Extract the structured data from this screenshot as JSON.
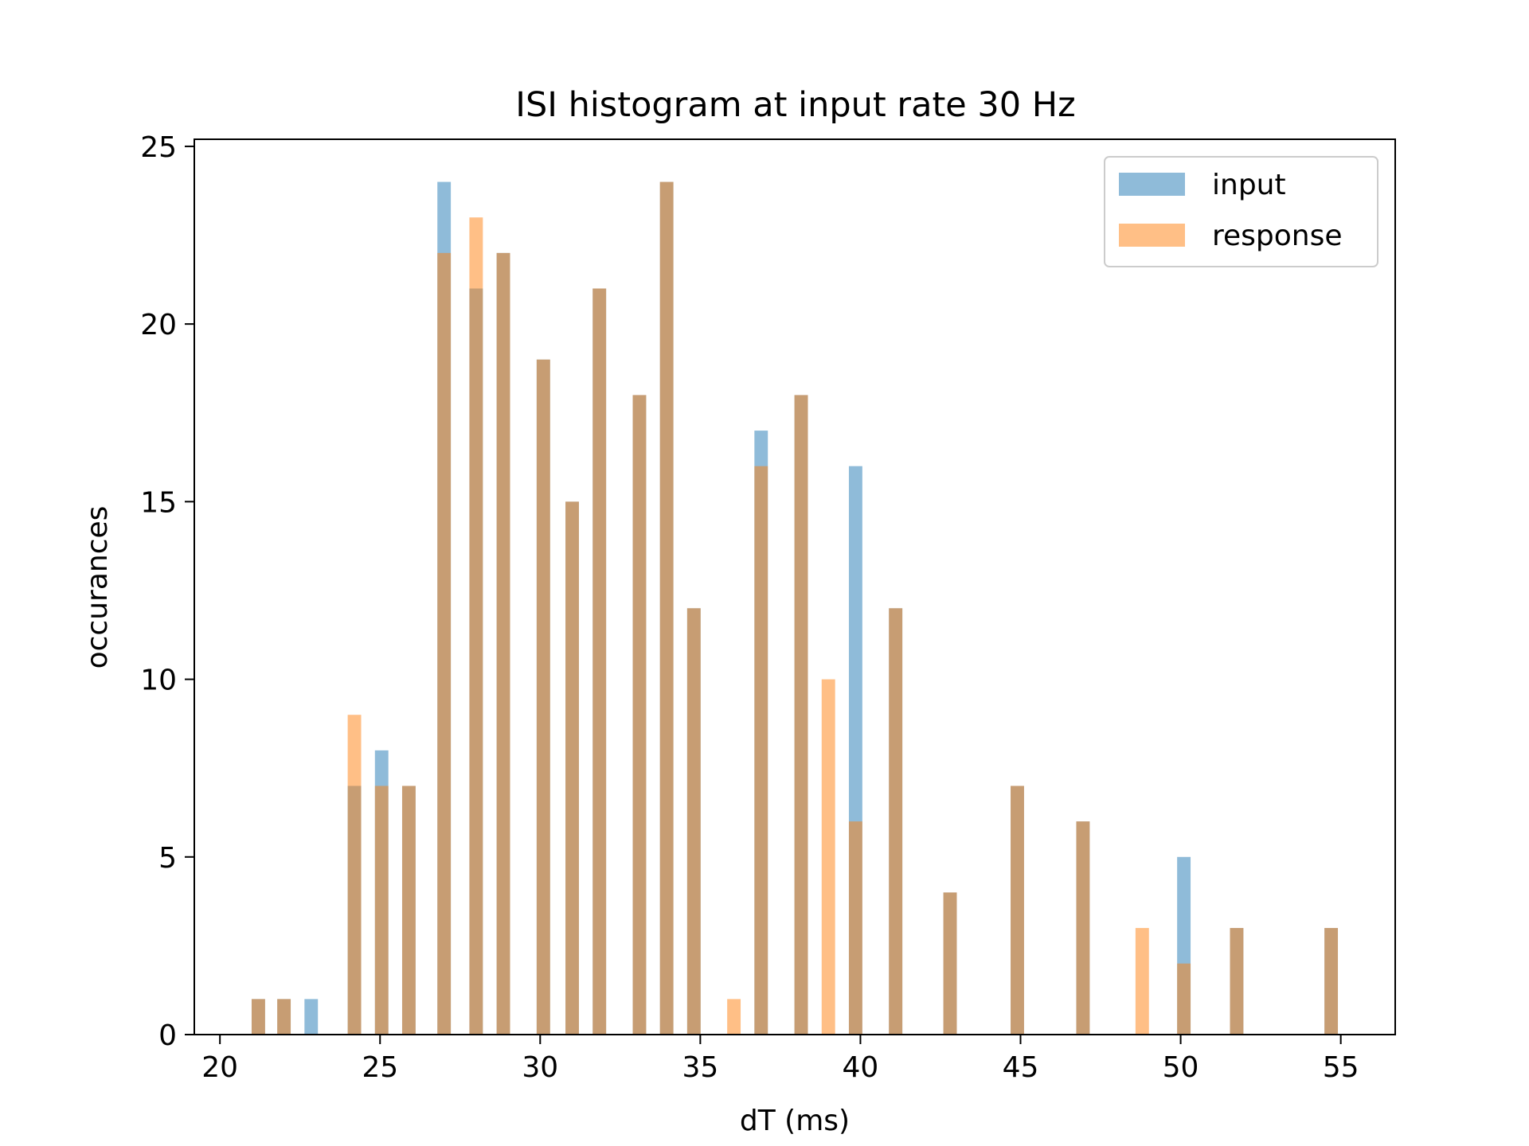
{
  "chart_data": {
    "type": "bar",
    "title": "ISI histogram at input rate 30 Hz",
    "xlabel": "dT (ms)",
    "ylabel": "occurances",
    "xlim": [
      19.2,
      56.7
    ],
    "ylim": [
      0,
      25.2
    ],
    "xticks": [
      20,
      25,
      30,
      35,
      40,
      45,
      50,
      55
    ],
    "yticks": [
      0,
      5,
      10,
      15,
      20,
      25
    ],
    "bin_width": 0.42,
    "legend": {
      "position": "top-right"
    },
    "grid": false,
    "series": [
      {
        "name": "input",
        "color": "#1f77b4",
        "opacity": 0.5,
        "points": [
          {
            "x": 21.2,
            "y": 1
          },
          {
            "x": 22.0,
            "y": 1
          },
          {
            "x": 22.85,
            "y": 1
          },
          {
            "x": 24.2,
            "y": 7
          },
          {
            "x": 25.05,
            "y": 8
          },
          {
            "x": 25.9,
            "y": 7
          },
          {
            "x": 27.0,
            "y": 24
          },
          {
            "x": 28.0,
            "y": 21
          },
          {
            "x": 28.85,
            "y": 22
          },
          {
            "x": 30.1,
            "y": 19
          },
          {
            "x": 31.0,
            "y": 15
          },
          {
            "x": 31.85,
            "y": 21
          },
          {
            "x": 33.1,
            "y": 18
          },
          {
            "x": 33.95,
            "y": 24
          },
          {
            "x": 34.8,
            "y": 12
          },
          {
            "x": 36.9,
            "y": 17
          },
          {
            "x": 38.15,
            "y": 18
          },
          {
            "x": 39.85,
            "y": 16
          },
          {
            "x": 41.1,
            "y": 12
          },
          {
            "x": 42.8,
            "y": 4
          },
          {
            "x": 44.9,
            "y": 7
          },
          {
            "x": 46.95,
            "y": 6
          },
          {
            "x": 50.1,
            "y": 5
          },
          {
            "x": 51.75,
            "y": 3
          },
          {
            "x": 54.7,
            "y": 3
          }
        ]
      },
      {
        "name": "response",
        "color": "#ff7f0e",
        "opacity": 0.5,
        "points": [
          {
            "x": 21.2,
            "y": 1
          },
          {
            "x": 22.0,
            "y": 1
          },
          {
            "x": 24.2,
            "y": 9
          },
          {
            "x": 25.05,
            "y": 7
          },
          {
            "x": 25.9,
            "y": 7
          },
          {
            "x": 27.0,
            "y": 22
          },
          {
            "x": 28.0,
            "y": 23
          },
          {
            "x": 28.85,
            "y": 22
          },
          {
            "x": 30.1,
            "y": 19
          },
          {
            "x": 31.0,
            "y": 15
          },
          {
            "x": 31.85,
            "y": 21
          },
          {
            "x": 33.1,
            "y": 18
          },
          {
            "x": 33.95,
            "y": 24
          },
          {
            "x": 34.8,
            "y": 12
          },
          {
            "x": 36.05,
            "y": 1
          },
          {
            "x": 36.9,
            "y": 16
          },
          {
            "x": 38.15,
            "y": 18
          },
          {
            "x": 39.0,
            "y": 10
          },
          {
            "x": 39.85,
            "y": 6
          },
          {
            "x": 41.1,
            "y": 12
          },
          {
            "x": 42.8,
            "y": 4
          },
          {
            "x": 44.9,
            "y": 7
          },
          {
            "x": 46.95,
            "y": 6
          },
          {
            "x": 48.8,
            "y": 3
          },
          {
            "x": 50.1,
            "y": 2
          },
          {
            "x": 51.75,
            "y": 3
          },
          {
            "x": 54.7,
            "y": 3
          }
        ]
      }
    ]
  }
}
